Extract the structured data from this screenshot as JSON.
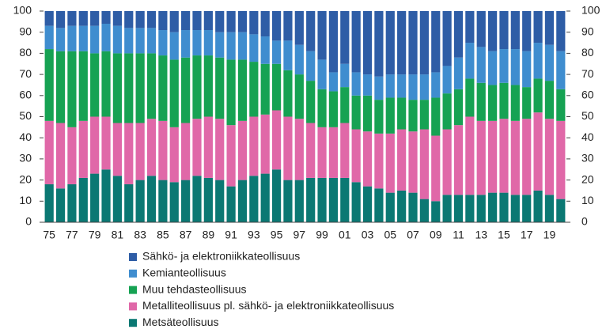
{
  "chart_data": {
    "type": "stacked_bar",
    "categories": [
      "75",
      null,
      "77",
      null,
      "79",
      null,
      "81",
      null,
      "83",
      null,
      "85",
      null,
      "87",
      null,
      "89",
      null,
      "91",
      null,
      "93",
      null,
      "95",
      null,
      "97",
      null,
      "99",
      null,
      "01",
      null,
      "03",
      null,
      "05",
      null,
      "07",
      null,
      "09",
      null,
      "11",
      null,
      "13",
      null,
      "15",
      null,
      "17",
      null,
      "19",
      null
    ],
    "series": [
      {
        "name": "Sähkö- ja elektroniikkateollisuus",
        "color": "#2e5da6",
        "values": [
          7,
          8,
          7,
          7,
          7,
          6,
          7,
          8,
          8,
          8,
          9,
          10,
          9,
          9,
          9,
          10,
          10,
          10,
          11,
          12,
          14,
          14,
          16,
          19,
          23,
          29,
          25,
          29,
          30,
          31,
          30,
          30,
          30,
          30,
          29,
          26,
          22,
          15,
          17,
          19,
          18,
          18,
          19,
          15,
          16,
          19
        ]
      },
      {
        "name": "Kemianteollisuus",
        "color": "#3f8dcf",
        "values": [
          11,
          11,
          12,
          12,
          13,
          13,
          13,
          12,
          12,
          12,
          12,
          13,
          13,
          12,
          12,
          12,
          13,
          13,
          13,
          13,
          11,
          14,
          14,
          14,
          14,
          9,
          11,
          11,
          10,
          11,
          11,
          11,
          12,
          12,
          12,
          13,
          15,
          17,
          17,
          16,
          16,
          17,
          17,
          17,
          17,
          18
        ]
      },
      {
        "name": "Muu tehdasteollisuus",
        "color": "#16a253",
        "values": [
          34,
          34,
          36,
          33,
          30,
          31,
          33,
          33,
          33,
          31,
          31,
          32,
          31,
          30,
          29,
          29,
          31,
          29,
          26,
          24,
          22,
          22,
          21,
          20,
          18,
          17,
          17,
          16,
          17,
          16,
          17,
          15,
          15,
          14,
          18,
          17,
          17,
          18,
          18,
          17,
          17,
          17,
          15,
          16,
          18,
          15
        ]
      },
      {
        "name": "Metalliteollisuus pl. sähkö- ja elektroniikkateollisuus",
        "color": "#e068a8",
        "values": [
          30,
          31,
          27,
          27,
          27,
          25,
          25,
          29,
          27,
          27,
          28,
          26,
          27,
          27,
          29,
          29,
          29,
          28,
          28,
          28,
          28,
          30,
          29,
          26,
          24,
          24,
          26,
          25,
          26,
          26,
          28,
          29,
          29,
          33,
          31,
          31,
          33,
          37,
          35,
          34,
          35,
          35,
          36,
          37,
          36,
          37
        ]
      },
      {
        "name": "Metsäteollisuus",
        "color": "#0b7873",
        "values": [
          18,
          16,
          18,
          21,
          23,
          25,
          22,
          18,
          20,
          22,
          20,
          19,
          20,
          22,
          21,
          20,
          17,
          20,
          22,
          23,
          25,
          20,
          20,
          21,
          21,
          21,
          21,
          19,
          17,
          16,
          14,
          15,
          14,
          11,
          10,
          13,
          13,
          13,
          13,
          14,
          14,
          13,
          13,
          15,
          13,
          11
        ]
      }
    ],
    "ylim": [
      0,
      100
    ],
    "yticks": [
      0,
      10,
      20,
      30,
      40,
      50,
      60,
      70,
      80,
      90,
      100
    ]
  }
}
